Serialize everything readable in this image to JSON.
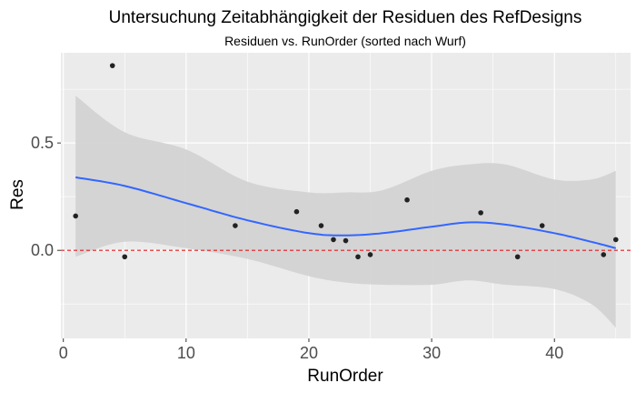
{
  "chart_data": {
    "type": "scatter",
    "title": "Untersuchung Zeitabhängigkeit der Residuen des RefDesigns",
    "subtitle": "Residuen vs. RunOrder (sorted nach Wurf)",
    "xlabel": "RunOrder",
    "ylabel": "Res",
    "xlim": [
      -0.2,
      46.2
    ],
    "ylim": [
      -0.41,
      0.92
    ],
    "x_ticks": [
      0,
      10,
      20,
      30,
      40
    ],
    "y_ticks": [
      0.0,
      0.5
    ],
    "x_tick_labels": [
      "0",
      "10",
      "20",
      "30",
      "40"
    ],
    "y_tick_labels": [
      "0.0",
      "0.5"
    ],
    "grid": true,
    "background": "#ebebeb",
    "reference_line": {
      "y": 0,
      "color": "#e41a1c",
      "style": "dashed"
    },
    "points": {
      "color": "#222222",
      "x": [
        1,
        4,
        5,
        14,
        19,
        21,
        22,
        23,
        24,
        25,
        28,
        34,
        37,
        39,
        44,
        45
      ],
      "y": [
        0.16,
        0.86,
        -0.03,
        0.115,
        0.18,
        0.115,
        0.05,
        0.045,
        -0.03,
        -0.02,
        0.235,
        0.175,
        -0.03,
        0.115,
        -0.02,
        0.05
      ]
    },
    "smooth": {
      "color": "#3366ff",
      "band_color": "#d3d3d3",
      "x": [
        1,
        5,
        10,
        15,
        20,
        23,
        26,
        30,
        33,
        36,
        40,
        43,
        45
      ],
      "y": [
        0.34,
        0.3,
        0.22,
        0.14,
        0.08,
        0.07,
        0.08,
        0.11,
        0.13,
        0.12,
        0.08,
        0.04,
        0.01
      ],
      "lower": [
        -0.03,
        0.04,
        0.01,
        -0.04,
        -0.12,
        -0.15,
        -0.16,
        -0.16,
        -0.14,
        -0.16,
        -0.18,
        -0.25,
        -0.36
      ],
      "upper": [
        0.72,
        0.55,
        0.47,
        0.32,
        0.27,
        0.27,
        0.28,
        0.37,
        0.4,
        0.4,
        0.33,
        0.33,
        0.37
      ]
    }
  }
}
